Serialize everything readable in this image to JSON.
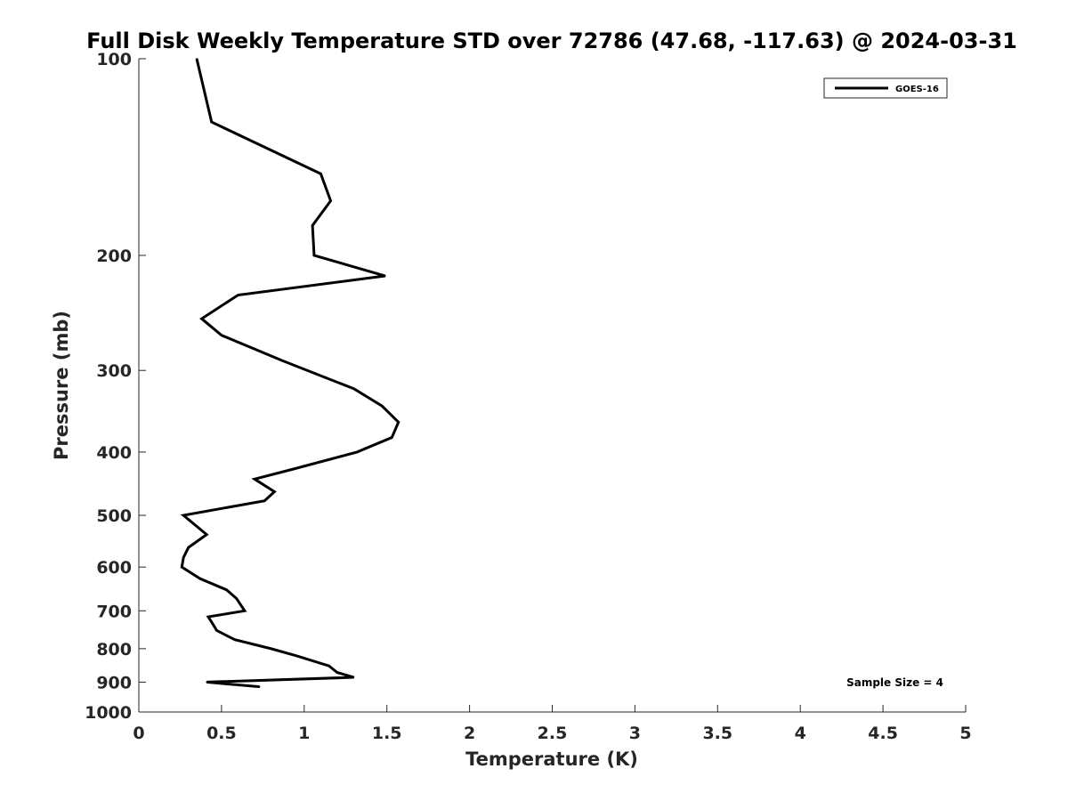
{
  "chart_data": {
    "type": "line",
    "title": "Full Disk Weekly Temperature STD over 72786 (47.68, -117.63) @ 2024-03-31",
    "xlabel": "Temperature (K)",
    "ylabel": "Pressure (mb)",
    "xlim": [
      0,
      5
    ],
    "ylim": [
      1000,
      100
    ],
    "y_scale": "log",
    "y_reversed": true,
    "grid": false,
    "legend_position": "top-right",
    "x_ticks": [
      {
        "value": 0,
        "label": "0"
      },
      {
        "value": 0.5,
        "label": "0.5"
      },
      {
        "value": 1,
        "label": "1"
      },
      {
        "value": 1.5,
        "label": "1.5"
      },
      {
        "value": 2,
        "label": "2"
      },
      {
        "value": 2.5,
        "label": "2.5"
      },
      {
        "value": 3,
        "label": "3"
      },
      {
        "value": 3.5,
        "label": "3.5"
      },
      {
        "value": 4,
        "label": "4"
      },
      {
        "value": 4.5,
        "label": "4.5"
      },
      {
        "value": 5,
        "label": "5"
      }
    ],
    "y_ticks": [
      {
        "value": 100,
        "label": "100"
      },
      {
        "value": 200,
        "label": "200"
      },
      {
        "value": 300,
        "label": "300"
      },
      {
        "value": 400,
        "label": "400"
      },
      {
        "value": 500,
        "label": "500"
      },
      {
        "value": 600,
        "label": "600"
      },
      {
        "value": 700,
        "label": "700"
      },
      {
        "value": 800,
        "label": "800"
      },
      {
        "value": 900,
        "label": "900"
      },
      {
        "value": 1000,
        "label": "1000"
      }
    ],
    "series": [
      {
        "name": "GOES-16",
        "color": "#000000",
        "points": [
          {
            "x": 0.35,
            "y": 100
          },
          {
            "x": 0.44,
            "y": 125
          },
          {
            "x": 1.1,
            "y": 150
          },
          {
            "x": 1.16,
            "y": 165
          },
          {
            "x": 1.05,
            "y": 180
          },
          {
            "x": 1.06,
            "y": 200
          },
          {
            "x": 1.49,
            "y": 215
          },
          {
            "x": 0.6,
            "y": 230
          },
          {
            "x": 0.38,
            "y": 250
          },
          {
            "x": 0.5,
            "y": 265
          },
          {
            "x": 0.87,
            "y": 290
          },
          {
            "x": 1.3,
            "y": 320
          },
          {
            "x": 1.47,
            "y": 340
          },
          {
            "x": 1.57,
            "y": 360
          },
          {
            "x": 1.53,
            "y": 380
          },
          {
            "x": 1.32,
            "y": 400
          },
          {
            "x": 0.93,
            "y": 425
          },
          {
            "x": 0.7,
            "y": 440
          },
          {
            "x": 0.82,
            "y": 460
          },
          {
            "x": 0.76,
            "y": 475
          },
          {
            "x": 0.27,
            "y": 500
          },
          {
            "x": 0.41,
            "y": 535
          },
          {
            "x": 0.3,
            "y": 560
          },
          {
            "x": 0.27,
            "y": 580
          },
          {
            "x": 0.26,
            "y": 600
          },
          {
            "x": 0.37,
            "y": 625
          },
          {
            "x": 0.53,
            "y": 650
          },
          {
            "x": 0.59,
            "y": 670
          },
          {
            "x": 0.64,
            "y": 700
          },
          {
            "x": 0.42,
            "y": 715
          },
          {
            "x": 0.45,
            "y": 735
          },
          {
            "x": 0.47,
            "y": 750
          },
          {
            "x": 0.58,
            "y": 775
          },
          {
            "x": 0.8,
            "y": 800
          },
          {
            "x": 0.95,
            "y": 820
          },
          {
            "x": 1.15,
            "y": 850
          },
          {
            "x": 1.2,
            "y": 870
          },
          {
            "x": 1.3,
            "y": 885
          },
          {
            "x": 0.41,
            "y": 900
          },
          {
            "x": 0.73,
            "y": 915
          }
        ]
      }
    ],
    "annotation": "Sample Size = 4"
  }
}
